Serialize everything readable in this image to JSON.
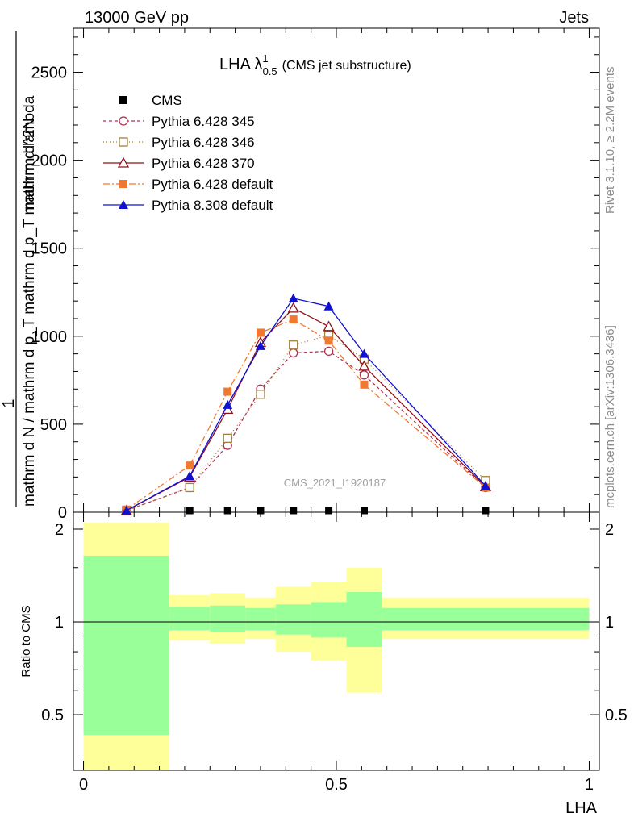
{
  "header": {
    "left": "13000 GeV pp",
    "right": "Jets"
  },
  "side": {
    "version": "Rivet 3.1.10, ≥ 2.2M events",
    "source": "mcplots.cern.ch [arXiv:1306.3436]"
  },
  "chart_data": {
    "type": "line",
    "title": "LHA λ",
    "title_sup": "1",
    "title_sub": "0.5",
    "subtitle": "(CMS jet substructure)",
    "watermark": "CMS_2021_I1920187",
    "xlabel": "LHA",
    "ylabel_top": "1",
    "ylabel_main": "mathrm d N / mathrm d p_T mathrm d p_T mathrm d lambda",
    "ylabel_num": "mathrm d^2N",
    "ylabel_ratio": "Ratio to CMS",
    "xlim": [
      -0.02,
      1.02
    ],
    "ylim": [
      0,
      2750
    ],
    "ratio_ylim": [
      0.33,
      2.27
    ],
    "x_ticks": [
      "0",
      "0.5",
      "1"
    ],
    "y_ticks": [
      "0",
      "500",
      "1000",
      "1500",
      "2000",
      "2500"
    ],
    "ratio_ticks": [
      "0.5",
      "1",
      "2"
    ],
    "x": [
      0.085,
      0.21,
      0.285,
      0.35,
      0.415,
      0.485,
      0.555,
      0.795
    ],
    "bin_edges": [
      0,
      0.17,
      0.25,
      0.32,
      0.38,
      0.45,
      0.52,
      0.59,
      1.0
    ],
    "series": [
      {
        "name": "CMS",
        "color": "#000000",
        "marker": "square-filled",
        "dash": "none",
        "values": [
          0,
          0,
          0,
          0,
          0,
          0,
          0,
          0
        ]
      },
      {
        "name": "Pythia 6.428 345",
        "color": "#b03050",
        "marker": "circle-open",
        "dash": "4,3",
        "values": [
          10,
          140,
          380,
          700,
          905,
          915,
          780,
          140
        ]
      },
      {
        "name": "Pythia 6.428 346",
        "color": "#a08040",
        "marker": "square-open",
        "dash": "1,3",
        "values": [
          10,
          140,
          420,
          670,
          950,
          1005,
          870,
          180
        ]
      },
      {
        "name": "Pythia 6.428 370",
        "color": "#901018",
        "marker": "triangle-open",
        "dash": "none",
        "values": [
          10,
          200,
          585,
          965,
          1160,
          1055,
          830,
          145
        ]
      },
      {
        "name": "Pythia 6.428 default",
        "color": "#f07830",
        "marker": "square-filled",
        "dash": "8,3,2,3",
        "values": [
          15,
          265,
          685,
          1020,
          1095,
          975,
          725,
          140
        ]
      },
      {
        "name": "Pythia 8.308 default",
        "color": "#1010d0",
        "marker": "triangle-filled",
        "dash": "none",
        "values": [
          10,
          205,
          610,
          945,
          1215,
          1170,
          900,
          150
        ]
      }
    ],
    "ratio_band_inner": [
      [
        0.43,
        1.64
      ],
      [
        0.94,
        1.12
      ],
      [
        0.93,
        1.13
      ],
      [
        0.94,
        1.11
      ],
      [
        0.91,
        1.14
      ],
      [
        0.89,
        1.16
      ],
      [
        0.83,
        1.25
      ],
      [
        0.94,
        1.11
      ]
    ],
    "ratio_band_outer": [
      [
        0.33,
        2.1
      ],
      [
        0.87,
        1.22
      ],
      [
        0.85,
        1.24
      ],
      [
        0.88,
        1.2
      ],
      [
        0.8,
        1.3
      ],
      [
        0.75,
        1.35
      ],
      [
        0.59,
        1.5
      ],
      [
        0.88,
        1.2
      ]
    ],
    "colors": {
      "band_inner": "#99ff99",
      "band_outer": "#ffff99"
    },
    "legend_placement": "top-left"
  }
}
